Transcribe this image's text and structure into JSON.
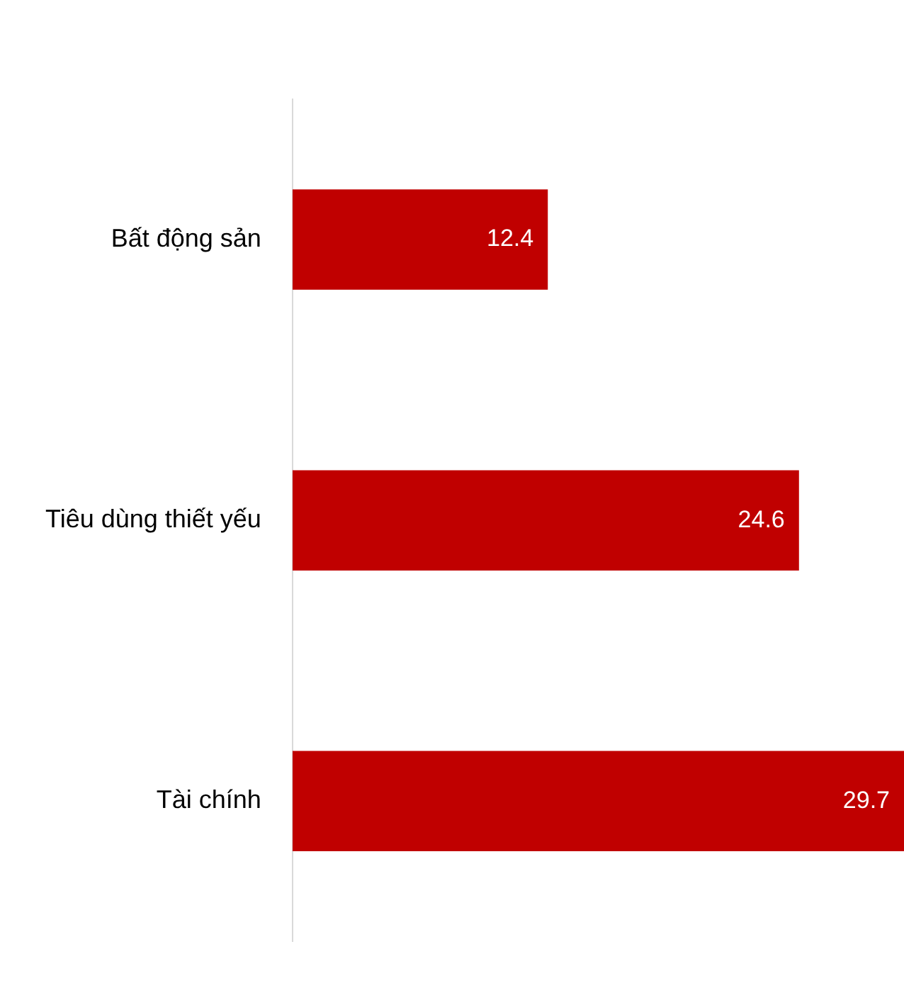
{
  "chart_data": {
    "type": "bar",
    "orientation": "horizontal",
    "categories": [
      "Bất động sản",
      "Tiêu dùng thiết yếu",
      "Tài chính"
    ],
    "values": [
      12.4,
      24.6,
      29.7
    ],
    "color": "#c00000",
    "data_labels": true
  }
}
